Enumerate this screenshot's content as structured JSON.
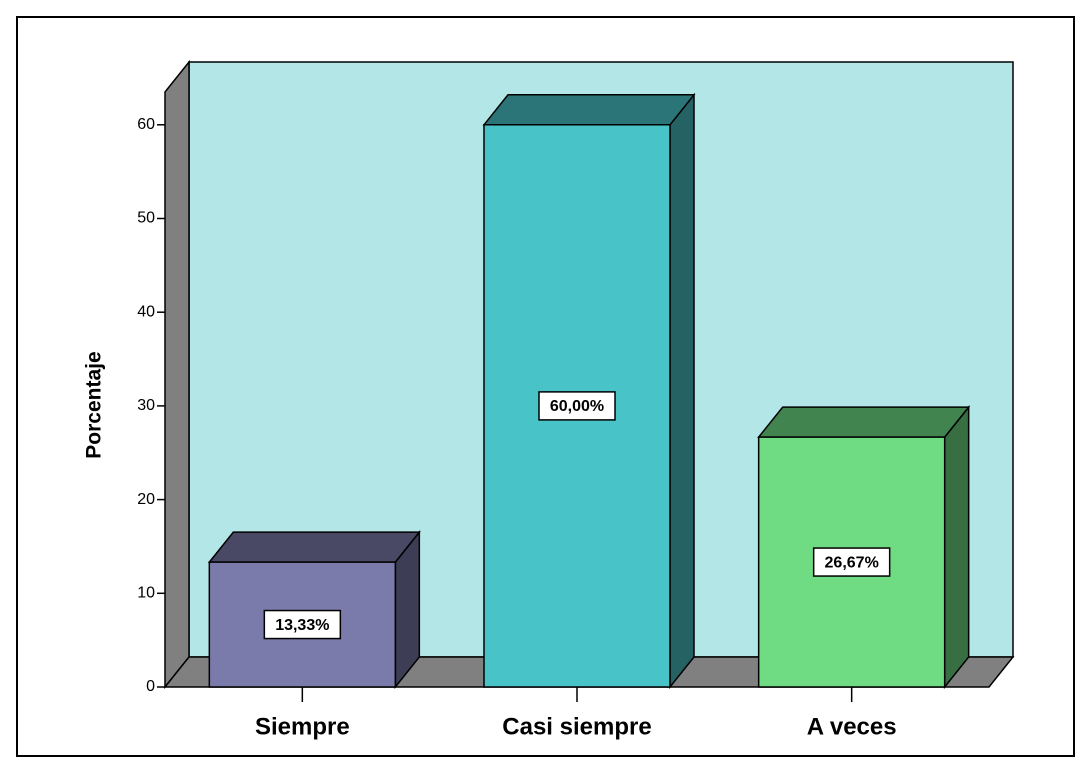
{
  "chart_data": {
    "type": "bar3d",
    "categories": [
      "Siempre",
      "Casi siempre",
      "A veces"
    ],
    "values": [
      13.33,
      60,
      26.67
    ],
    "value_labels": [
      "13,33%",
      "60,00%",
      "26,67%"
    ],
    "colors": [
      "#7b7bab",
      "#48c4c8",
      "#6fdc84"
    ],
    "y_label": "Porcentaje",
    "ylim": [
      0,
      63.5
    ],
    "yticks": [
      0,
      10,
      20,
      30,
      40,
      50,
      60
    ]
  }
}
